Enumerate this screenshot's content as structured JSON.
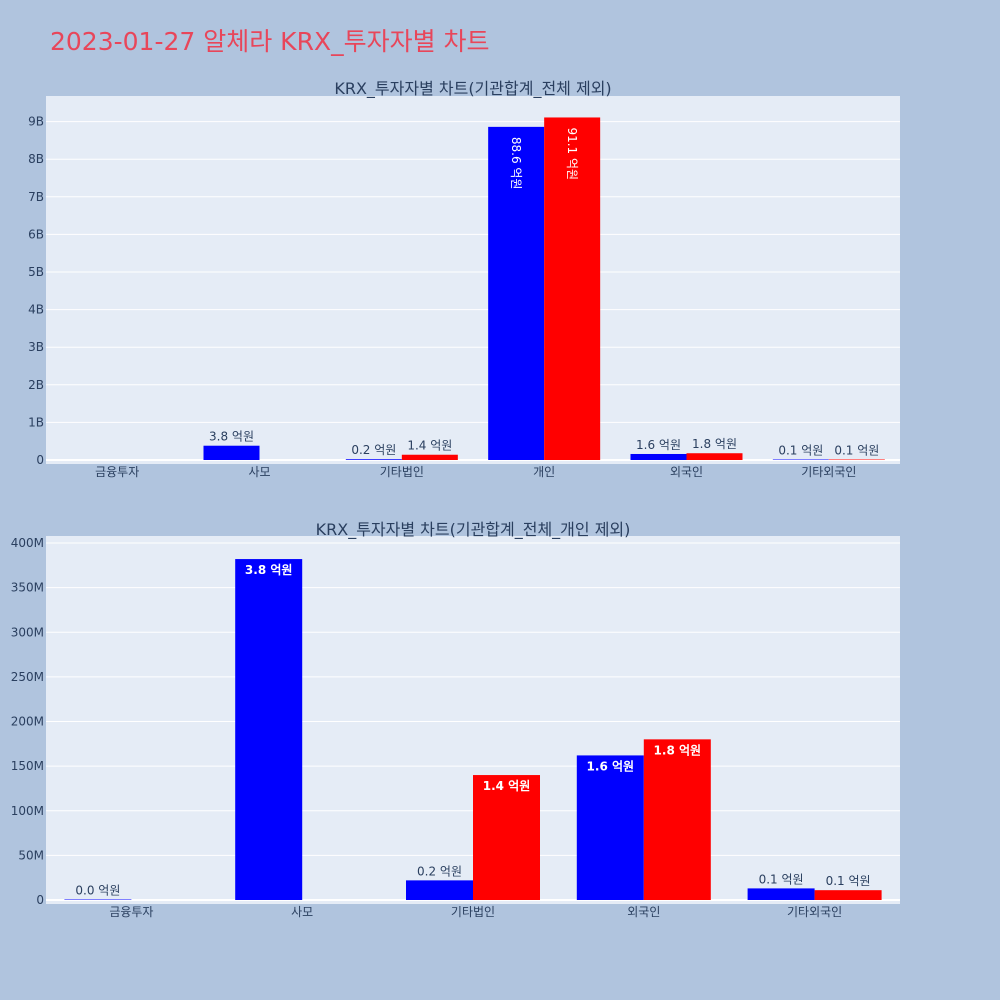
{
  "page": {
    "title": "2023-01-27 알체라 KRX_투자자별 차트"
  },
  "colors": {
    "background": "#b0c4de",
    "plot_bg": "#e5ecf6",
    "title": "#e8465a",
    "buy": "#0000ff",
    "sell": "#ff0000",
    "text": "#2a3f5f"
  },
  "chart_data": [
    {
      "type": "bar",
      "title": "KRX_투자자별 차트(기관합계_전체 제외)",
      "categories": [
        "금융투자",
        "사모",
        "기타법인",
        "개인",
        "외국인",
        "기타외국인"
      ],
      "ylim": [
        0,
        9.8
      ],
      "yunit": "B",
      "yticks": [
        0,
        1,
        2,
        3,
        4,
        5,
        6,
        7,
        8,
        9
      ],
      "ytick_labels": [
        "0",
        "1B",
        "2B",
        "3B",
        "4B",
        "5B",
        "6B",
        "7B",
        "8B",
        "9B"
      ],
      "grid": true,
      "legend": "none",
      "series": [
        {
          "color": "#0000ff",
          "values": [
            null,
            0.38,
            0.02,
            8.86,
            0.16,
            0.01
          ],
          "labels": [
            "",
            "3.8 억원",
            "0.2 억원",
            "88.6 억원",
            "1.6 억원",
            "0.1 억원"
          ]
        },
        {
          "color": "#ff0000",
          "values": [
            null,
            null,
            0.14,
            9.11,
            0.18,
            0.01
          ],
          "labels": [
            "",
            "",
            "1.4 억원",
            "91.1 억원",
            "1.8 억원",
            "0.1 억원"
          ]
        }
      ]
    },
    {
      "type": "bar",
      "title": "KRX_투자자별 차트(기관합계_전체_개인 제외)",
      "categories": [
        "금융투자",
        "사모",
        "기타법인",
        "외국인",
        "기타외국인"
      ],
      "ylim": [
        0,
        405
      ],
      "yunit": "M",
      "yticks": [
        0,
        50,
        100,
        150,
        200,
        250,
        300,
        350,
        400
      ],
      "ytick_labels": [
        "0",
        "50M",
        "100M",
        "150M",
        "200M",
        "250M",
        "300M",
        "350M",
        "400M"
      ],
      "grid": true,
      "legend": "none",
      "series": [
        {
          "color": "#0000ff",
          "values": [
            0.4,
            382,
            22,
            162,
            13
          ],
          "labels": [
            "0.0 억원",
            "3.8 억원",
            "0.2 억원",
            "1.6 억원",
            "0.1 억원"
          ]
        },
        {
          "color": "#ff0000",
          "values": [
            null,
            null,
            140,
            180,
            11
          ],
          "labels": [
            "",
            "",
            "1.4 억원",
            "1.8 억원",
            "0.1 억원"
          ]
        }
      ]
    }
  ]
}
